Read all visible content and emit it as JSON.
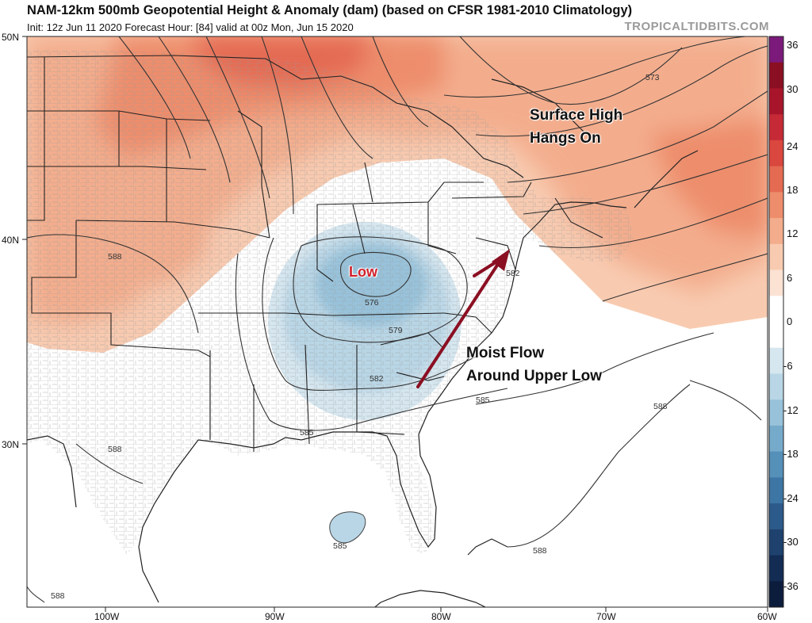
{
  "header": {
    "title": "NAM-12km 500mb Geopotential Height & Anomaly (dam) (based on CFSR 1981-2010 Climatology)",
    "subtitle": "Init: 12z Jun 11 2020   Forecast Hour: [84]   valid at 00z Mon, Jun 15 2020",
    "brand": "TROPICALTIDBITS.COM"
  },
  "axes": {
    "lat_labels": [
      "50N",
      "40N",
      "30N"
    ],
    "lon_labels": [
      "100W",
      "90W",
      "80W",
      "70W",
      "60W"
    ]
  },
  "colorbar": {
    "labels": [
      "36",
      "30",
      "24",
      "18",
      "12",
      "6",
      "0",
      "-6",
      "-12",
      "-18",
      "-24",
      "-30",
      "-36"
    ],
    "colors": [
      "#7b1a7b",
      "#8b0f22",
      "#a8152b",
      "#c52a36",
      "#d9473f",
      "#e46b52",
      "#ed8d6c",
      "#f3ad8d",
      "#f8cbb1",
      "#fbe2d3",
      "#ffffff",
      "#ffffff",
      "#d6e7f0",
      "#b9d6e6",
      "#98c2da",
      "#76aacb",
      "#5590b9",
      "#3d76a4",
      "#2c5a8a",
      "#1e416e",
      "#132c54",
      "#0c1c3c"
    ]
  },
  "contour_labels": {
    "c573": "573",
    "c576": "576",
    "c579": "579",
    "c582a": "582",
    "c582b": "582",
    "c585a": "585",
    "c585b": "585",
    "c585c": "585",
    "c588a": "588",
    "c588b": "588",
    "c588c": "588",
    "c588d": "588",
    "c588e": "588"
  },
  "annotations": {
    "low": "Low",
    "surface_high_line1": "Surface High",
    "surface_high_line2": "Hangs On",
    "moist_line1": "Moist Flow",
    "moist_line2": "Around Upper Low",
    "arrow_color": "#8b0f22"
  }
}
